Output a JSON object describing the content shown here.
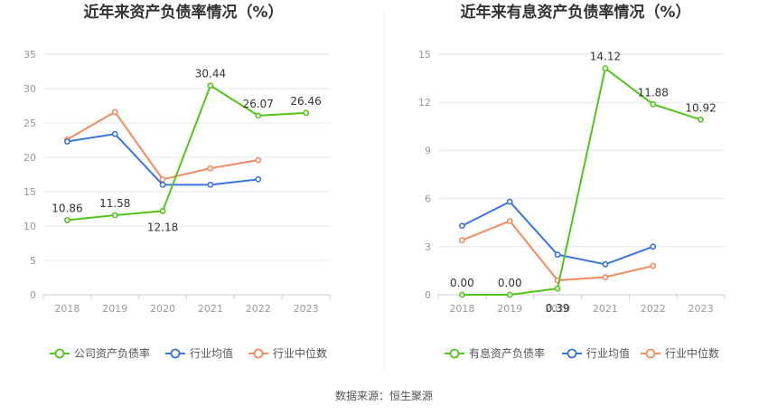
{
  "source_label": "数据来源：恒生聚源",
  "chart_data": [
    {
      "type": "line",
      "title": "近年来资产负债率情况（%）",
      "categories": [
        "2018",
        "2019",
        "2020",
        "2021",
        "2022",
        "2023"
      ],
      "ylim": [
        0,
        35
      ],
      "yticks": [
        0,
        5,
        10,
        15,
        20,
        25,
        30,
        35
      ],
      "grid": true,
      "legend_placement": "bottom",
      "series": [
        {
          "name": "公司资产负债率",
          "color": "#52c41a",
          "values": [
            10.86,
            11.58,
            12.18,
            30.44,
            26.07,
            26.46
          ],
          "labels": [
            "10.86",
            "11.58",
            "12.18",
            "30.44",
            "26.07",
            "26.46"
          ]
        },
        {
          "name": "行业均值",
          "color": "#3a74dd",
          "values": [
            22.3,
            23.4,
            16.0,
            16.0,
            16.8,
            null
          ],
          "labels": null
        },
        {
          "name": "行业中位数",
          "color": "#f28b5e",
          "values": [
            22.6,
            26.6,
            16.8,
            18.4,
            19.6,
            null
          ],
          "labels": null
        }
      ]
    },
    {
      "type": "line",
      "title": "近年来有息资产负债率情况（%）",
      "categories": [
        "2018",
        "2019",
        "2020",
        "2021",
        "2022",
        "2023"
      ],
      "ylim": [
        0,
        15
      ],
      "yticks": [
        0,
        3,
        6,
        9,
        12,
        15
      ],
      "grid": true,
      "legend_placement": "bottom",
      "series": [
        {
          "name": "有息资产负债率",
          "color": "#52c41a",
          "values": [
            0.0,
            0.0,
            0.39,
            14.12,
            11.88,
            10.92
          ],
          "labels": [
            "0.00",
            "0.00",
            "0.39",
            "14.12",
            "11.88",
            "10.92"
          ]
        },
        {
          "name": "行业均值",
          "color": "#3a74dd",
          "values": [
            4.3,
            5.8,
            2.5,
            1.9,
            3.0,
            null
          ],
          "labels": null
        },
        {
          "name": "行业中位数",
          "color": "#f28b5e",
          "values": [
            3.4,
            4.6,
            0.9,
            1.1,
            1.8,
            null
          ],
          "labels": null
        }
      ]
    }
  ]
}
